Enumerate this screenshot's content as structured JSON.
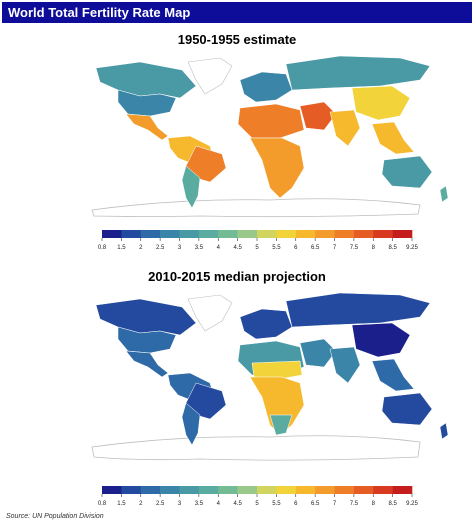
{
  "header": {
    "title": "World Total Fertility Rate Map"
  },
  "maps": [
    {
      "title": "1950-1955 estimate"
    },
    {
      "title": "2010-2015 median projection"
    }
  ],
  "legend": {
    "ticks": [
      "0.8",
      "1.5",
      "2",
      "2.5",
      "3",
      "3.5",
      "4",
      "4.5",
      "5",
      "5.5",
      "6",
      "6.5",
      "7",
      "7.5",
      "8",
      "8.5",
      "9.25"
    ],
    "colors": [
      "#1a1f8c",
      "#244aa0",
      "#2e6aa8",
      "#3a85a8",
      "#4a9aa6",
      "#5aaca0",
      "#72bb95",
      "#98c98a",
      "#cfd55f",
      "#f2d43a",
      "#f6b92e",
      "#f39c2b",
      "#ee7e28",
      "#e65c25",
      "#d83a20",
      "#c51d1c"
    ]
  },
  "source": {
    "text": "Source: UN Population Division"
  }
}
